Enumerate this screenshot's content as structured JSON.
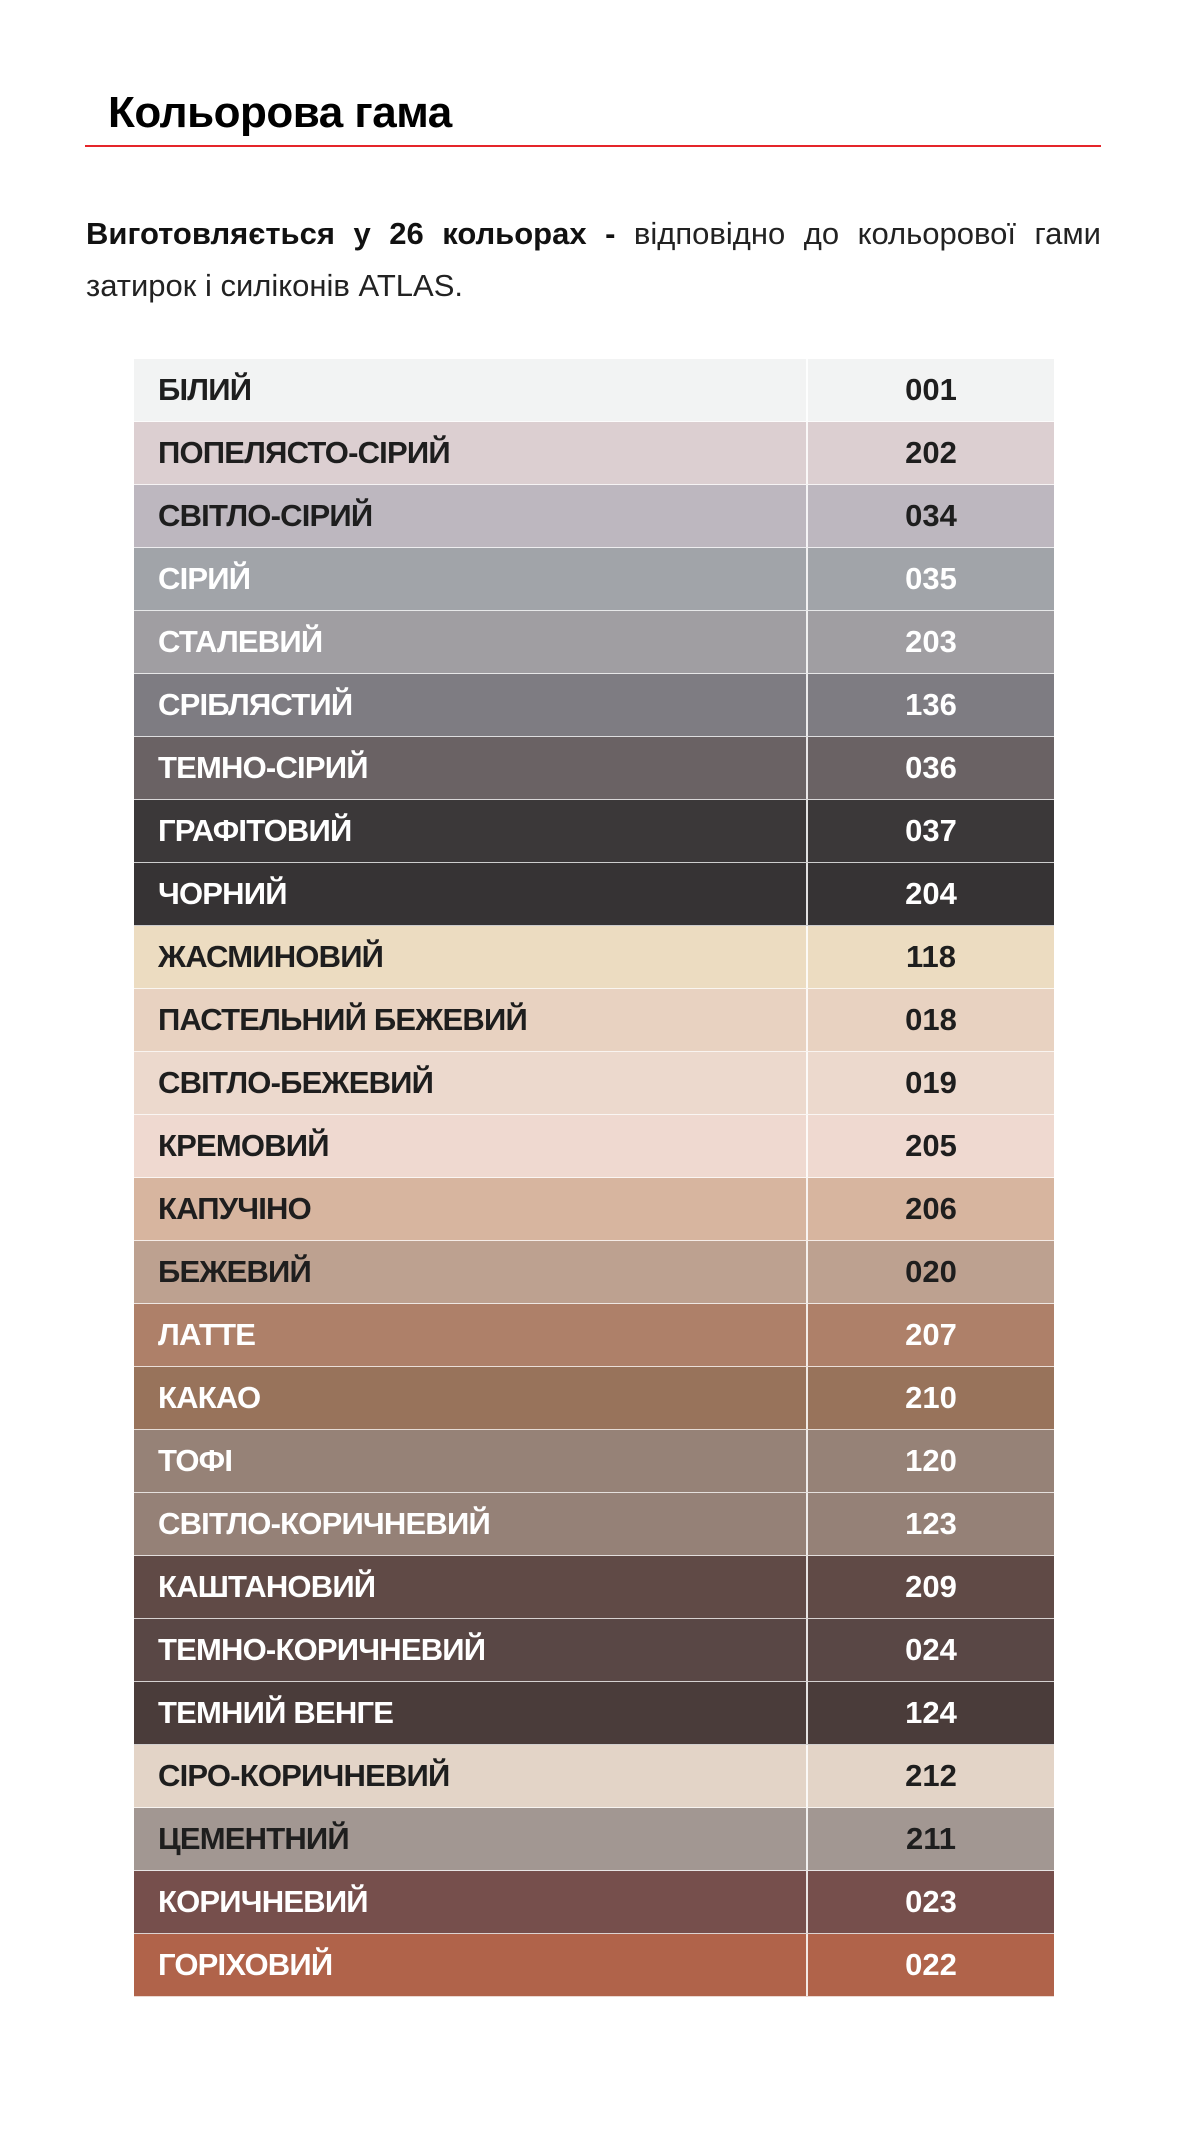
{
  "header": {
    "title": "Кольорова гама"
  },
  "intro": {
    "bold": "Виготовляється у 26  кольорах -",
    "rest": " відповідно до кольорової гами затирок і силіконів ATLAS."
  },
  "colors": [
    {
      "name": "БІЛИЙ",
      "code": "001",
      "swatch": "#f2f3f3",
      "text": "dark"
    },
    {
      "name": "ПОПЕЛЯСТО-СІРИЙ",
      "code": "202",
      "swatch": "#dccfd1",
      "text": "dark"
    },
    {
      "name": "СВІТЛО-СІРИЙ",
      "code": "034",
      "swatch": "#bdb7bf",
      "text": "dark"
    },
    {
      "name": "СІРИЙ",
      "code": "035",
      "swatch": "#a1a4a9",
      "text": "light"
    },
    {
      "name": "СТАЛЕВИЙ",
      "code": "203",
      "swatch": "#a09ea2",
      "text": "light"
    },
    {
      "name": "СРІБЛЯСТИЙ",
      "code": "136",
      "swatch": "#7e7c82",
      "text": "light"
    },
    {
      "name": "ТЕМНО-СІРИЙ",
      "code": "036",
      "swatch": "#6a6264",
      "text": "light"
    },
    {
      "name": "ГРАФІТОВИЙ",
      "code": "037",
      "swatch": "#3b3839",
      "text": "light"
    },
    {
      "name": "ЧОРНИЙ",
      "code": "204",
      "swatch": "#363334",
      "text": "light"
    },
    {
      "name": "ЖАСМИНОВИЙ",
      "code": "118",
      "swatch": "#ecdcc1",
      "text": "dark"
    },
    {
      "name": "ПАСТЕЛЬНИЙ БЕЖЕВИЙ",
      "code": "018",
      "swatch": "#e8d2c1",
      "text": "dark"
    },
    {
      "name": "СВІТЛО-БЕЖЕВИЙ",
      "code": "019",
      "swatch": "#ecd9cd",
      "text": "dark"
    },
    {
      "name": "КРЕМОВИЙ",
      "code": "205",
      "swatch": "#efd9d0",
      "text": "dark"
    },
    {
      "name": "КАПУЧІНО",
      "code": "206",
      "swatch": "#d7b59f",
      "text": "dark"
    },
    {
      "name": "БЕЖЕВИЙ",
      "code": "020",
      "swatch": "#bda190",
      "text": "dark"
    },
    {
      "name": "ЛАТТЕ",
      "code": "207",
      "swatch": "#ae8069",
      "text": "light"
    },
    {
      "name": "КАКАО",
      "code": "210",
      "swatch": "#98735b",
      "text": "light"
    },
    {
      "name": "ТОФІ",
      "code": "120",
      "swatch": "#968277",
      "text": "light"
    },
    {
      "name": "СВІТЛО-КОРИЧНЕВИЙ",
      "code": "123",
      "swatch": "#958177",
      "text": "light"
    },
    {
      "name": "КАШТАНОВИЙ",
      "code": "209",
      "swatch": "#604a46",
      "text": "light"
    },
    {
      "name": "ТЕМНО-КОРИЧНЕВИЙ",
      "code": "024",
      "swatch": "#594745",
      "text": "light"
    },
    {
      "name": "ТЕМНИЙ ВЕНГЕ",
      "code": "124",
      "swatch": "#4a3c3a",
      "text": "light"
    },
    {
      "name": "СІРО-КОРИЧНЕВИЙ",
      "code": "212",
      "swatch": "#e3d4c7",
      "text": "dark"
    },
    {
      "name": "ЦЕМЕНТНИЙ",
      "code": "211",
      "swatch": "#a29792",
      "text": "dark"
    },
    {
      "name": "КОРИЧНЕВИЙ",
      "code": "023",
      "swatch": "#764f4c",
      "text": "light"
    },
    {
      "name": "ГОРІХОВИЙ",
      "code": "022",
      "swatch": "#b0634a",
      "text": "light"
    }
  ],
  "accent": "#e5252a"
}
